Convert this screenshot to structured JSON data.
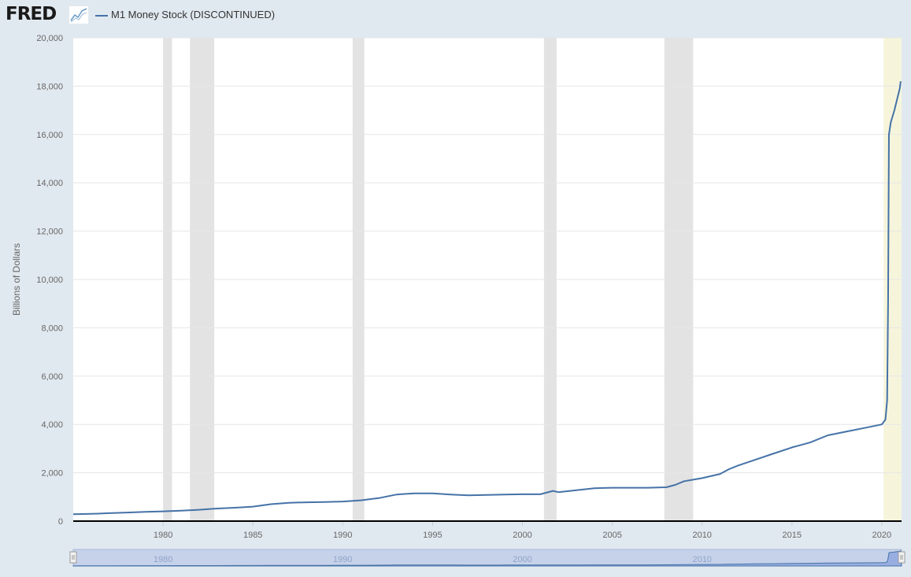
{
  "header": {
    "logo": "FRED",
    "legend_label": "M1 Money Stock (DISCONTINUED)"
  },
  "colors": {
    "background": "#e1e9f0",
    "plot_background": "#ffffff",
    "series": "#4572a7",
    "recession": "#e3e3e3",
    "highlight": "#f6f5dc",
    "navigator_fill": "#c6d2ea"
  },
  "icons": [
    "fred-logo-chart-icon",
    "navigator-left-handle-icon",
    "navigator-right-handle-icon"
  ],
  "chart_data": {
    "type": "line",
    "title": "",
    "xlabel": "",
    "ylabel": "Billions of Dollars",
    "xlim": [
      1975.0,
      2021.1
    ],
    "ylim": [
      0,
      20000
    ],
    "grid": true,
    "legend": "top-left",
    "x_ticks": [
      1980,
      1985,
      1990,
      1995,
      2000,
      2005,
      2010,
      2015,
      2020
    ],
    "y_ticks": [
      0,
      2000,
      4000,
      6000,
      8000,
      10000,
      12000,
      14000,
      16000,
      18000,
      20000
    ],
    "y_tick_labels": [
      "0",
      "2,000",
      "4,000",
      "6,000",
      "8,000",
      "10,000",
      "12,000",
      "14,000",
      "16,000",
      "18,000",
      "20,000"
    ],
    "recessions": [
      [
        1980.0,
        1980.5
      ],
      [
        1981.5,
        1982.85
      ],
      [
        1990.55,
        1991.2
      ],
      [
        2001.2,
        2001.9
      ],
      [
        2007.9,
        2009.5
      ]
    ],
    "highlight_band": [
      2020.1,
      2021.1
    ],
    "series": [
      {
        "name": "M1 Money Stock (DISCONTINUED)",
        "x": [
          1975.0,
          1976.0,
          1977.0,
          1978.0,
          1979.0,
          1980.0,
          1981.0,
          1982.0,
          1983.0,
          1984.0,
          1985.0,
          1986.0,
          1987.0,
          1988.0,
          1989.0,
          1990.0,
          1991.0,
          1992.0,
          1993.0,
          1994.0,
          1995.0,
          1996.0,
          1997.0,
          1998.0,
          1999.0,
          2000.0,
          2001.0,
          2001.7,
          2002.0,
          2003.0,
          2004.0,
          2005.0,
          2006.0,
          2007.0,
          2008.0,
          2008.5,
          2009.0,
          2010.0,
          2011.0,
          2011.5,
          2012.0,
          2013.0,
          2014.0,
          2015.0,
          2016.0,
          2017.0,
          2018.0,
          2019.0,
          2020.0,
          2020.2,
          2020.3,
          2020.35,
          2020.4,
          2020.5,
          2020.7,
          2021.0,
          2021.05
        ],
        "y": [
          285,
          300,
          330,
          355,
          380,
          405,
          430,
          470,
          520,
          555,
          600,
          700,
          760,
          780,
          790,
          810,
          860,
          950,
          1100,
          1150,
          1150,
          1100,
          1070,
          1080,
          1100,
          1110,
          1110,
          1250,
          1200,
          1280,
          1360,
          1380,
          1380,
          1380,
          1400,
          1500,
          1650,
          1780,
          1950,
          2150,
          2300,
          2550,
          2800,
          3050,
          3250,
          3550,
          3700,
          3850,
          4000,
          4200,
          5000,
          9000,
          16000,
          16500,
          17000,
          17900,
          18200
        ]
      }
    ],
    "navigator_labels": [
      "1980",
      "1990",
      "2000",
      "2010"
    ]
  }
}
